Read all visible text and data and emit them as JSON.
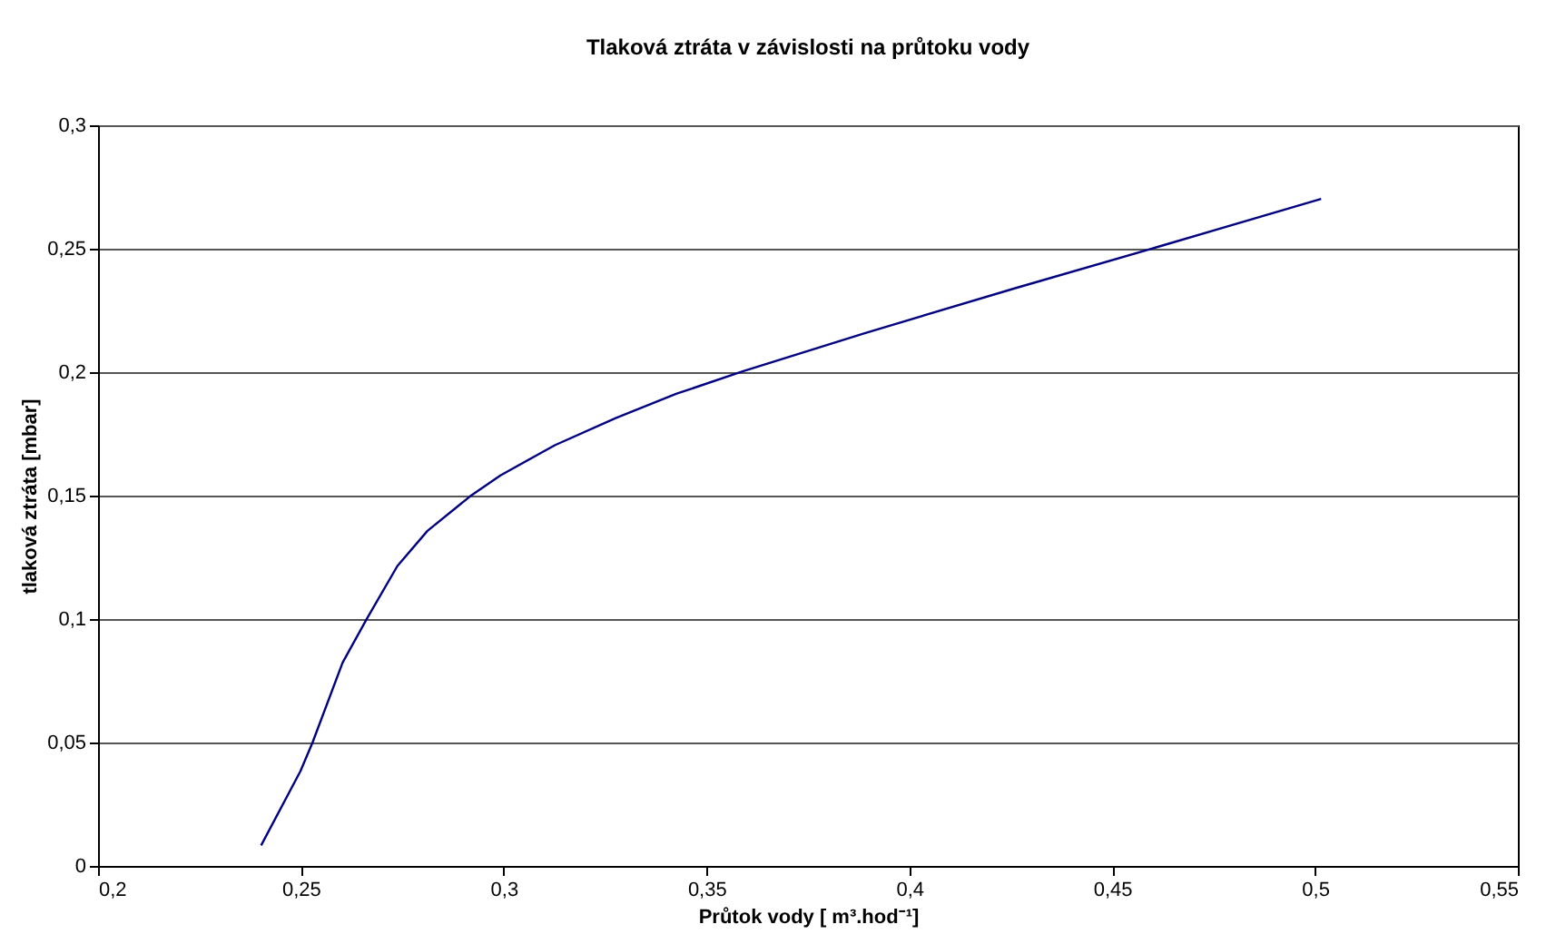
{
  "chart_data": {
    "type": "line",
    "title": "Tlaková ztráta v závislosti na průtoku vody",
    "xlabel": "Průtok vody [ m³.hod⁻¹]",
    "ylabel": "tlaková ztráta  [mbar]",
    "series": [
      {
        "color": "#000080",
        "x": [
          0.2402,
          0.2499,
          0.2529,
          0.2603,
          0.2663,
          0.2738,
          0.2812,
          0.2917,
          0.2992,
          0.3126,
          0.3276,
          0.3425,
          0.3589,
          0.3888,
          0.4261,
          0.462,
          0.5015
        ],
        "values": [
          0.0083,
          0.0384,
          0.0501,
          0.0824,
          0.1002,
          0.1215,
          0.1357,
          0.1497,
          0.1582,
          0.1704,
          0.1814,
          0.1912,
          0.2003,
          0.2157,
          0.234,
          0.2511,
          0.2702
        ]
      }
    ],
    "xlim": [
      0.2,
      0.55
    ],
    "ylim": [
      0,
      0.3
    ],
    "xticks": [
      {
        "value": 0.2,
        "label": "0,2"
      },
      {
        "value": 0.25,
        "label": "0,25"
      },
      {
        "value": 0.3,
        "label": "0,3"
      },
      {
        "value": 0.35,
        "label": "0,35"
      },
      {
        "value": 0.4,
        "label": "0,4"
      },
      {
        "value": 0.45,
        "label": "0,45"
      },
      {
        "value": 0.5,
        "label": "0,5"
      },
      {
        "value": 0.55,
        "label": "0,55"
      }
    ],
    "yticks": [
      0,
      {
        "value": 0.05,
        "label": "0,05"
      },
      {
        "value": 0.1,
        "label": "0,1"
      },
      {
        "value": 0.15,
        "label": "0,15"
      },
      {
        "value": 0.2,
        "label": "0,2"
      },
      {
        "value": 0.25,
        "label": "0,25"
      },
      {
        "value": 0.3,
        "label": "0,3"
      }
    ],
    "grid": "y",
    "marker": "none",
    "line_style": "solid"
  }
}
